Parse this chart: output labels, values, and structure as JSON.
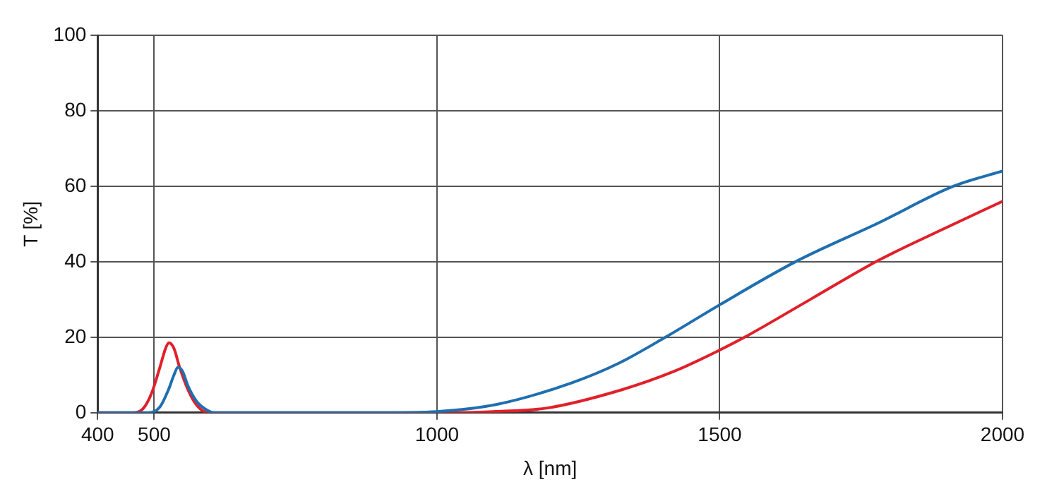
{
  "chart_data": {
    "type": "line",
    "xlabel": "λ [nm]",
    "ylabel": "T [%]",
    "xlim": [
      400,
      2000
    ],
    "xticks": [
      400,
      500,
      1000,
      1500,
      2000
    ],
    "ylim": [
      0,
      100
    ],
    "yticks": [
      0,
      20,
      40,
      60,
      80,
      100
    ],
    "grid": true,
    "series": [
      {
        "color": "#1f6fb0",
        "x": [
          400,
          490,
          510,
          525,
          535,
          542,
          550,
          560,
          575,
          590,
          606,
          700,
          900,
          1000,
          1106,
          1238,
          1320,
          1404,
          1500,
          1634,
          1781,
          1913,
          2000
        ],
        "values": [
          0,
          0,
          1.5,
          6,
          10,
          12,
          11,
          7,
          3,
          1,
          0,
          0,
          0,
          0.3,
          2.2,
          7.9,
          13,
          20,
          28.6,
          40,
          50.3,
          60,
          64
        ]
      },
      {
        "color": "#e0202a",
        "x": [
          400,
          463,
          480,
          495,
          510,
          520,
          526,
          535,
          545,
          560,
          575,
          595,
          1000,
          1100,
          1193,
          1325,
          1420,
          1500,
          1544,
          1660,
          1781,
          1900,
          2000
        ],
        "values": [
          0,
          0,
          1,
          5,
          12,
          17,
          18.5,
          17,
          12,
          6,
          2,
          0,
          0,
          0.3,
          1.2,
          6,
          11,
          16.6,
          20,
          30,
          40.4,
          49,
          56
        ]
      }
    ]
  }
}
